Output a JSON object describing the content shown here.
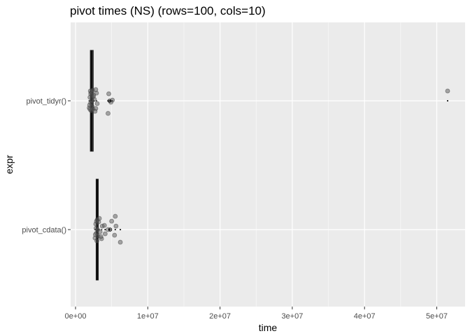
{
  "chart_data": {
    "type": "boxplot",
    "title": "pivot times (NS) (rows=100, cols=10)",
    "xlabel": "time",
    "ylabel": "expr",
    "xlim": [
      -200000,
      53800000
    ],
    "x_ticks": [
      {
        "value": 0,
        "label": "0e+00"
      },
      {
        "value": 10000000,
        "label": "1e+07"
      },
      {
        "value": 20000000,
        "label": "2e+07"
      },
      {
        "value": 30000000,
        "label": "3e+07"
      },
      {
        "value": 40000000,
        "label": "4e+07"
      },
      {
        "value": 50000000,
        "label": "5e+07"
      }
    ],
    "categories": [
      "pivot_tidyr()",
      "pivot_cdata()"
    ],
    "series": [
      {
        "name": "pivot_tidyr()",
        "box": {
          "whisker_low": 1800000,
          "q1": 2050000,
          "median": 2200000,
          "q3": 2450000,
          "whisker_high": 3000000
        },
        "mean": 4700000,
        "outliers": [
          4500000,
          4800000,
          5100000,
          51500000
        ],
        "points": [
          [
            1900000,
            0.1
          ],
          [
            2000000,
            -0.05
          ],
          [
            2100000,
            0.03
          ],
          [
            2200000,
            -0.12
          ],
          [
            2300000,
            0.08
          ],
          [
            2150000,
            0.14
          ],
          [
            2050000,
            -0.14
          ],
          [
            2400000,
            0.12
          ],
          [
            2600000,
            -0.02
          ],
          [
            2800000,
            0.11
          ],
          [
            2900000,
            -0.11
          ],
          [
            3000000,
            0.04
          ],
          [
            2500000,
            -0.08
          ],
          [
            2250000,
            0.0
          ],
          [
            1950000,
            0.06
          ],
          [
            2700000,
            0.15
          ],
          [
            2350000,
            -0.15
          ],
          [
            2000000,
            0.12
          ],
          [
            2450000,
            -0.06
          ],
          [
            2100000,
            -0.1
          ],
          [
            4500000,
            0.18
          ],
          [
            4900000,
            0.02
          ],
          [
            5100000,
            -0.01
          ],
          [
            4600000,
            -0.1
          ],
          [
            2800000,
            -0.16
          ],
          [
            51500000,
            -0.14
          ]
        ]
      },
      {
        "name": "pivot_cdata()",
        "box": {
          "whisker_low": 2600000,
          "q1": 2850000,
          "median": 3000000,
          "q3": 3150000,
          "whisker_high": 3700000
        },
        "mean": 4800000,
        "outliers": [
          4100000,
          4700000,
          5500000,
          6200000
        ],
        "points": [
          [
            2700000,
            0.12
          ],
          [
            2800000,
            -0.08
          ],
          [
            2900000,
            0.05
          ],
          [
            3000000,
            -0.14
          ],
          [
            3100000,
            0.09
          ],
          [
            2950000,
            0.16
          ],
          [
            2850000,
            -0.02
          ],
          [
            3200000,
            -0.11
          ],
          [
            3400000,
            0.03
          ],
          [
            3600000,
            0.13
          ],
          [
            3700000,
            -0.05
          ],
          [
            3050000,
            0.0
          ],
          [
            2750000,
            0.07
          ],
          [
            3300000,
            -0.16
          ],
          [
            3500000,
            0.1
          ],
          [
            2900000,
            -0.12
          ],
          [
            4000000,
            -0.06
          ],
          [
            4100000,
            0.06
          ],
          [
            4500000,
            0.0
          ],
          [
            5000000,
            -0.12
          ],
          [
            5400000,
            0.08
          ],
          [
            5600000,
            -0.05
          ],
          [
            6200000,
            0.18
          ],
          [
            5500000,
            -0.19
          ]
        ]
      }
    ],
    "grid": true,
    "colors": {
      "panel_bg": "#ebebeb",
      "grid_major": "#ffffff",
      "box_fill": "#333333",
      "point": "#5a5a5a",
      "mean_dot": "#000000"
    }
  }
}
